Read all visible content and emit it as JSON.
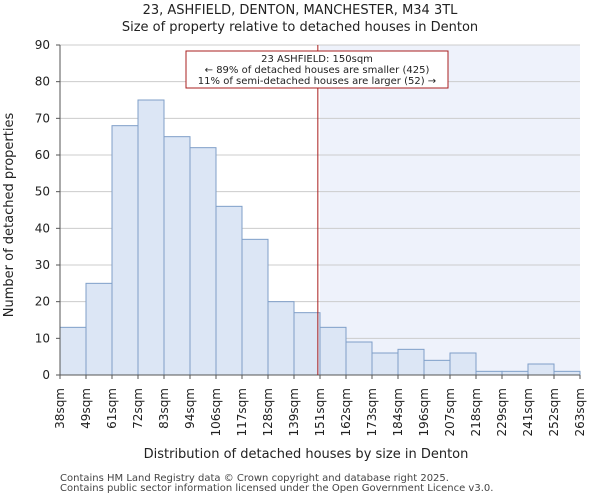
{
  "chart_data": {
    "type": "bar",
    "title": "23, ASHFIELD, DENTON, MANCHESTER, M34 3TL",
    "subtitle": "Size of property relative to detached houses in Denton",
    "xlabel": "Distribution of detached houses by size in Denton",
    "ylabel": "Number of detached properties",
    "bin_edges": [
      38,
      49,
      61,
      72,
      83,
      94,
      106,
      117,
      128,
      139,
      151,
      162,
      173,
      184,
      196,
      207,
      218,
      229,
      241,
      252,
      263
    ],
    "x_tick_labels": [
      "38sqm",
      "49sqm",
      "61sqm",
      "72sqm",
      "83sqm",
      "94sqm",
      "106sqm",
      "117sqm",
      "128sqm",
      "139sqm",
      "151sqm",
      "162sqm",
      "173sqm",
      "184sqm",
      "196sqm",
      "207sqm",
      "218sqm",
      "229sqm",
      "241sqm",
      "252sqm",
      "263sqm"
    ],
    "values": [
      13,
      25,
      68,
      75,
      65,
      62,
      46,
      37,
      20,
      17,
      13,
      9,
      6,
      7,
      4,
      6,
      1,
      1,
      3,
      1
    ],
    "ylim": [
      0,
      90
    ],
    "y_ticks": [
      0,
      10,
      20,
      30,
      40,
      50,
      60,
      70,
      80,
      90
    ],
    "marker": {
      "value": 150,
      "highlight_from_bin": 10,
      "annotation": [
        "23 ASHFIELD: 150sqm",
        "← 89% of detached houses are smaller (425)",
        "11% of semi-detached houses are larger (52) →"
      ]
    },
    "colors": {
      "bar_fill": "#dce6f5",
      "bar_edge": "#7f9fc8",
      "highlight_bg": "#eef2fb",
      "marker_line": "#aa1f1f",
      "annotation_border": "#aa1f1f",
      "axis": "#555555"
    }
  },
  "footer": {
    "line1": "Contains HM Land Registry data © Crown copyright and database right 2025.",
    "line2": "Contains public sector information licensed under the Open Government Licence v3.0."
  }
}
